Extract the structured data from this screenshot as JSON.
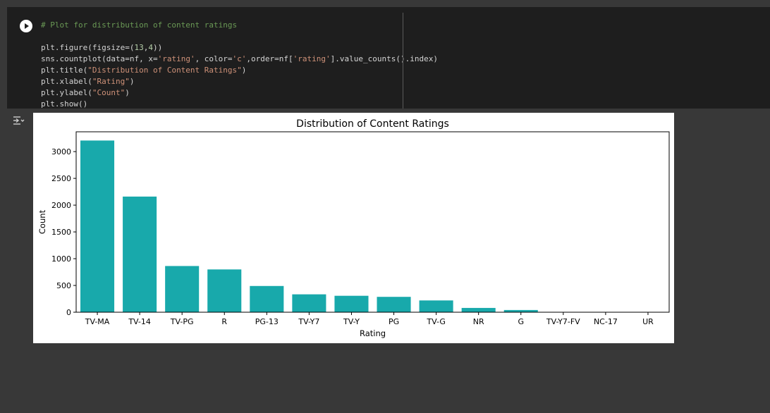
{
  "code_cell": {
    "lines": [
      "# Plot for distribution of content ratings",
      "",
      "plt.figure(figsize=(13,4))",
      "sns.countplot(data=nf, x='rating', color='c',order=nf['rating'].value_counts().index)",
      "plt.title(\"Distribution of Content Ratings\")",
      "plt.xlabel(\"Rating\")",
      "plt.ylabel(\"Count\")",
      "plt.show()"
    ],
    "run_icon": "play-circle-icon",
    "output_toggle_icon": "output-expand-icon"
  },
  "colors": {
    "bar": "#18a9ab",
    "cell_bg": "#1e1e1e",
    "page_bg": "#383838"
  },
  "chart_data": {
    "type": "bar",
    "title": "Distribution of Content Ratings",
    "xlabel": "Rating",
    "ylabel": "Count",
    "categories": [
      "TV-MA",
      "TV-14",
      "TV-PG",
      "R",
      "PG-13",
      "TV-Y7",
      "TV-Y",
      "PG",
      "TV-G",
      "NR",
      "G",
      "TV-Y7-FV",
      "NC-17",
      "UR"
    ],
    "values": [
      3207,
      2160,
      863,
      799,
      490,
      334,
      307,
      287,
      220,
      80,
      41,
      6,
      3,
      3
    ],
    "ylim": [
      0,
      3370
    ],
    "yticks": [
      0,
      500,
      1000,
      1500,
      2000,
      2500,
      3000
    ],
    "grid": false,
    "legend": "none"
  }
}
